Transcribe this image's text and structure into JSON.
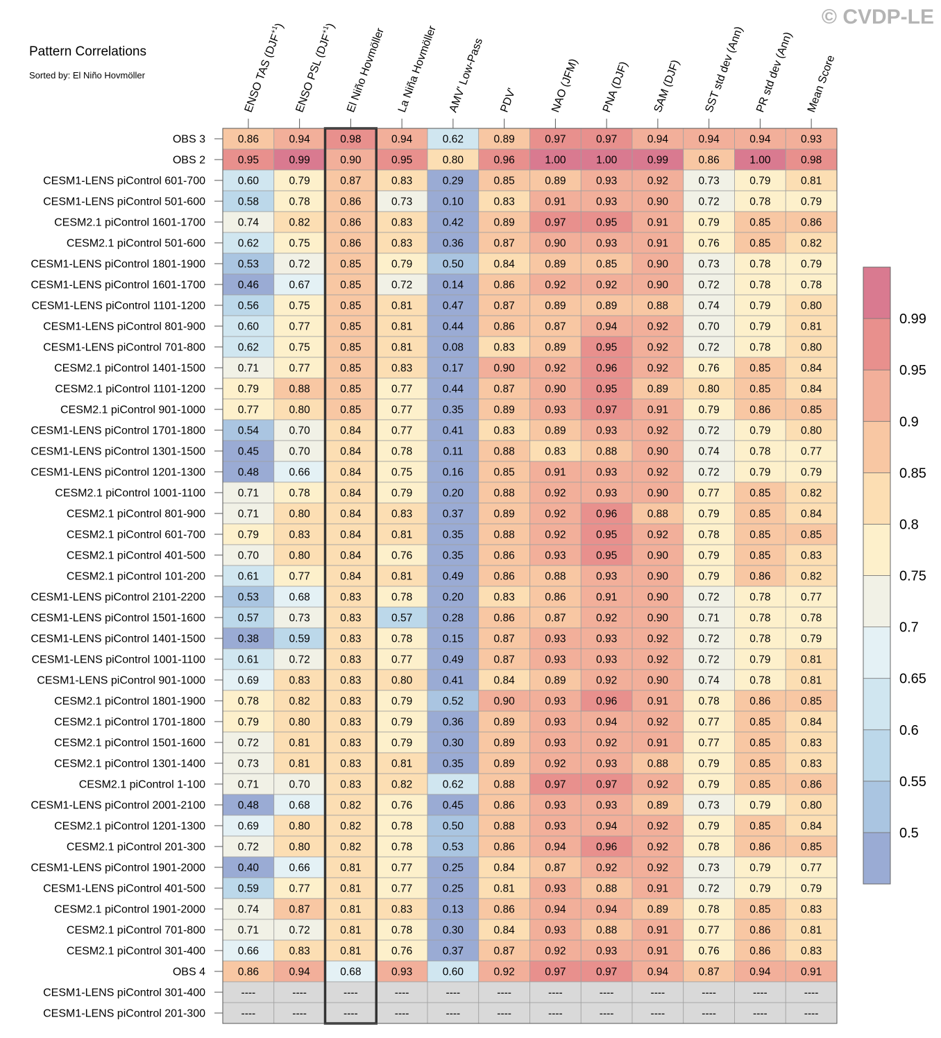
{
  "watermark": "© CVDP-LE",
  "chart_data": {
    "type": "heatmap",
    "title": "Pattern Correlations",
    "subtitle": "Sorted by: El Niño Hovmöller",
    "highlighted_column": "El Niño Hovmöller",
    "missing_label": "----",
    "columns": [
      {
        "name": "ENSO TAS (DJF",
        "sup": "+1",
        "close": ")"
      },
      {
        "name": "ENSO PSL (DJF",
        "sup": "+1",
        "close": ")"
      },
      {
        "name": "El Niño Hovmöller",
        "sup": "",
        "close": ""
      },
      {
        "name": "La Niña Hovmöller",
        "sup": "",
        "close": ""
      },
      {
        "name": "AMV' Low-Pass",
        "sup": "",
        "close": ""
      },
      {
        "name": "PDV'",
        "sup": "",
        "close": ""
      },
      {
        "name": "NAO (JFM)",
        "sup": "",
        "close": ""
      },
      {
        "name": "PNA (DJF)",
        "sup": "",
        "close": ""
      },
      {
        "name": "SAM (DJF)",
        "sup": "",
        "close": ""
      },
      {
        "name": "SST std dev (Ann)",
        "sup": "",
        "close": ""
      },
      {
        "name": "PR std dev (Ann)",
        "sup": "",
        "close": ""
      },
      {
        "name": "Mean Score",
        "sup": "",
        "close": ""
      }
    ],
    "rows": [
      {
        "label": "OBS 3",
        "values": [
          0.86,
          0.94,
          0.98,
          0.94,
          0.62,
          0.89,
          0.97,
          0.97,
          0.94,
          0.94,
          0.94,
          0.93
        ]
      },
      {
        "label": "OBS 2",
        "values": [
          0.95,
          0.99,
          0.9,
          0.95,
          0.8,
          0.96,
          1.0,
          1.0,
          0.99,
          0.86,
          1.0,
          0.98
        ]
      },
      {
        "label": "CESM1-LENS piControl 601-700",
        "values": [
          0.6,
          0.79,
          0.87,
          0.83,
          0.29,
          0.85,
          0.89,
          0.93,
          0.92,
          0.73,
          0.79,
          0.81
        ]
      },
      {
        "label": "CESM1-LENS piControl 501-600",
        "values": [
          0.58,
          0.78,
          0.86,
          0.73,
          0.1,
          0.83,
          0.91,
          0.93,
          0.9,
          0.72,
          0.78,
          0.79
        ]
      },
      {
        "label": "CESM2.1 piControl 1601-1700",
        "values": [
          0.74,
          0.82,
          0.86,
          0.83,
          0.42,
          0.89,
          0.97,
          0.95,
          0.91,
          0.79,
          0.85,
          0.86
        ]
      },
      {
        "label": "CESM2.1 piControl 501-600",
        "values": [
          0.62,
          0.75,
          0.86,
          0.83,
          0.36,
          0.87,
          0.9,
          0.93,
          0.91,
          0.76,
          0.85,
          0.82
        ]
      },
      {
        "label": "CESM1-LENS piControl 1801-1900",
        "values": [
          0.53,
          0.72,
          0.85,
          0.79,
          0.5,
          0.84,
          0.89,
          0.85,
          0.9,
          0.73,
          0.78,
          0.79
        ]
      },
      {
        "label": "CESM1-LENS piControl 1601-1700",
        "values": [
          0.46,
          0.67,
          0.85,
          0.72,
          0.14,
          0.86,
          0.92,
          0.92,
          0.9,
          0.72,
          0.78,
          0.78
        ]
      },
      {
        "label": "CESM1-LENS piControl 1101-1200",
        "values": [
          0.56,
          0.75,
          0.85,
          0.81,
          0.47,
          0.87,
          0.89,
          0.89,
          0.88,
          0.74,
          0.79,
          0.8
        ]
      },
      {
        "label": "CESM1-LENS piControl 801-900",
        "values": [
          0.6,
          0.77,
          0.85,
          0.81,
          0.44,
          0.86,
          0.87,
          0.94,
          0.92,
          0.7,
          0.79,
          0.81
        ]
      },
      {
        "label": "CESM1-LENS piControl 701-800",
        "values": [
          0.62,
          0.75,
          0.85,
          0.81,
          0.08,
          0.83,
          0.89,
          0.95,
          0.92,
          0.72,
          0.78,
          0.8
        ]
      },
      {
        "label": "CESM2.1 piControl 1401-1500",
        "values": [
          0.71,
          0.77,
          0.85,
          0.83,
          0.17,
          0.9,
          0.92,
          0.96,
          0.92,
          0.76,
          0.85,
          0.84
        ]
      },
      {
        "label": "CESM2.1 piControl 1101-1200",
        "values": [
          0.79,
          0.88,
          0.85,
          0.77,
          0.44,
          0.87,
          0.9,
          0.95,
          0.89,
          0.8,
          0.85,
          0.84
        ]
      },
      {
        "label": "CESM2.1 piControl 901-1000",
        "values": [
          0.77,
          0.8,
          0.85,
          0.77,
          0.35,
          0.89,
          0.93,
          0.97,
          0.91,
          0.79,
          0.86,
          0.85
        ]
      },
      {
        "label": "CESM1-LENS piControl 1701-1800",
        "values": [
          0.54,
          0.7,
          0.84,
          0.77,
          0.41,
          0.83,
          0.89,
          0.93,
          0.92,
          0.72,
          0.79,
          0.8
        ]
      },
      {
        "label": "CESM1-LENS piControl 1301-1500",
        "values": [
          0.45,
          0.7,
          0.84,
          0.78,
          0.11,
          0.88,
          0.83,
          0.88,
          0.9,
          0.74,
          0.78,
          0.77
        ]
      },
      {
        "label": "CESM1-LENS piControl 1201-1300",
        "values": [
          0.48,
          0.66,
          0.84,
          0.75,
          0.16,
          0.85,
          0.91,
          0.93,
          0.92,
          0.72,
          0.79,
          0.79
        ]
      },
      {
        "label": "CESM2.1 piControl 1001-1100",
        "values": [
          0.71,
          0.78,
          0.84,
          0.79,
          0.2,
          0.88,
          0.92,
          0.93,
          0.9,
          0.77,
          0.85,
          0.82
        ]
      },
      {
        "label": "CESM2.1 piControl 801-900",
        "values": [
          0.71,
          0.8,
          0.84,
          0.83,
          0.37,
          0.89,
          0.92,
          0.96,
          0.88,
          0.79,
          0.85,
          0.84
        ]
      },
      {
        "label": "CESM2.1 piControl 601-700",
        "values": [
          0.79,
          0.83,
          0.84,
          0.81,
          0.35,
          0.88,
          0.92,
          0.95,
          0.92,
          0.78,
          0.85,
          0.85
        ]
      },
      {
        "label": "CESM2.1 piControl 401-500",
        "values": [
          0.7,
          0.8,
          0.84,
          0.76,
          0.35,
          0.86,
          0.93,
          0.95,
          0.9,
          0.79,
          0.85,
          0.83
        ]
      },
      {
        "label": "CESM2.1 piControl 101-200",
        "values": [
          0.61,
          0.77,
          0.84,
          0.81,
          0.49,
          0.86,
          0.88,
          0.93,
          0.9,
          0.79,
          0.86,
          0.82
        ]
      },
      {
        "label": "CESM1-LENS piControl 2101-2200",
        "values": [
          0.53,
          0.68,
          0.83,
          0.78,
          0.2,
          0.83,
          0.86,
          0.91,
          0.9,
          0.72,
          0.78,
          0.77
        ]
      },
      {
        "label": "CESM1-LENS piControl 1501-1600",
        "values": [
          0.57,
          0.73,
          0.83,
          0.57,
          0.28,
          0.86,
          0.87,
          0.92,
          0.9,
          0.71,
          0.78,
          0.78
        ]
      },
      {
        "label": "CESM1-LENS piControl 1401-1500",
        "values": [
          0.38,
          0.59,
          0.83,
          0.78,
          0.15,
          0.87,
          0.93,
          0.93,
          0.92,
          0.72,
          0.78,
          0.79
        ]
      },
      {
        "label": "CESM1-LENS piControl 1001-1100",
        "values": [
          0.61,
          0.72,
          0.83,
          0.77,
          0.49,
          0.87,
          0.93,
          0.93,
          0.92,
          0.72,
          0.79,
          0.81
        ]
      },
      {
        "label": "CESM1-LENS piControl 901-1000",
        "values": [
          0.69,
          0.83,
          0.83,
          0.8,
          0.41,
          0.84,
          0.89,
          0.92,
          0.9,
          0.74,
          0.78,
          0.81
        ]
      },
      {
        "label": "CESM2.1 piControl 1801-1900",
        "values": [
          0.78,
          0.82,
          0.83,
          0.79,
          0.52,
          0.9,
          0.93,
          0.96,
          0.91,
          0.78,
          0.86,
          0.85
        ]
      },
      {
        "label": "CESM2.1 piControl 1701-1800",
        "values": [
          0.79,
          0.8,
          0.83,
          0.79,
          0.36,
          0.89,
          0.93,
          0.94,
          0.92,
          0.77,
          0.85,
          0.84
        ]
      },
      {
        "label": "CESM2.1 piControl 1501-1600",
        "values": [
          0.72,
          0.81,
          0.83,
          0.79,
          0.3,
          0.89,
          0.93,
          0.92,
          0.91,
          0.77,
          0.85,
          0.83
        ]
      },
      {
        "label": "CESM2.1 piControl 1301-1400",
        "values": [
          0.73,
          0.81,
          0.83,
          0.81,
          0.35,
          0.89,
          0.92,
          0.93,
          0.88,
          0.79,
          0.85,
          0.83
        ]
      },
      {
        "label": "CESM2.1 piControl 1-100",
        "values": [
          0.71,
          0.7,
          0.83,
          0.82,
          0.62,
          0.88,
          0.97,
          0.97,
          0.92,
          0.79,
          0.85,
          0.86
        ]
      },
      {
        "label": "CESM1-LENS piControl 2001-2100",
        "values": [
          0.48,
          0.68,
          0.82,
          0.76,
          0.45,
          0.86,
          0.93,
          0.93,
          0.89,
          0.73,
          0.79,
          0.8
        ]
      },
      {
        "label": "CESM2.1 piControl 1201-1300",
        "values": [
          0.69,
          0.8,
          0.82,
          0.78,
          0.5,
          0.88,
          0.93,
          0.94,
          0.92,
          0.79,
          0.85,
          0.84
        ]
      },
      {
        "label": "CESM2.1 piControl 201-300",
        "values": [
          0.72,
          0.8,
          0.82,
          0.78,
          0.53,
          0.86,
          0.94,
          0.96,
          0.92,
          0.78,
          0.86,
          0.85
        ]
      },
      {
        "label": "CESM1-LENS piControl 1901-2000",
        "values": [
          0.4,
          0.66,
          0.81,
          0.77,
          0.25,
          0.84,
          0.87,
          0.92,
          0.92,
          0.73,
          0.79,
          0.77
        ]
      },
      {
        "label": "CESM1-LENS piControl 401-500",
        "values": [
          0.59,
          0.77,
          0.81,
          0.77,
          0.25,
          0.81,
          0.93,
          0.88,
          0.91,
          0.72,
          0.79,
          0.79
        ]
      },
      {
        "label": "CESM2.1 piControl 1901-2000",
        "values": [
          0.74,
          0.87,
          0.81,
          0.83,
          0.13,
          0.86,
          0.94,
          0.94,
          0.89,
          0.78,
          0.85,
          0.83
        ]
      },
      {
        "label": "CESM2.1 piControl 701-800",
        "values": [
          0.71,
          0.72,
          0.81,
          0.78,
          0.3,
          0.84,
          0.93,
          0.88,
          0.91,
          0.77,
          0.86,
          0.81
        ]
      },
      {
        "label": "CESM2.1 piControl 301-400",
        "values": [
          0.66,
          0.83,
          0.81,
          0.76,
          0.37,
          0.87,
          0.92,
          0.93,
          0.91,
          0.76,
          0.86,
          0.83
        ]
      },
      {
        "label": "OBS 4",
        "values": [
          0.86,
          0.94,
          0.68,
          0.93,
          0.6,
          0.92,
          0.97,
          0.97,
          0.94,
          0.87,
          0.94,
          0.91
        ]
      },
      {
        "label": "CESM1-LENS piControl 301-400",
        "values": [
          null,
          null,
          null,
          null,
          null,
          null,
          null,
          null,
          null,
          null,
          null,
          null
        ]
      },
      {
        "label": "CESM1-LENS piControl 201-300",
        "values": [
          null,
          null,
          null,
          null,
          null,
          null,
          null,
          null,
          null,
          null,
          null,
          null
        ]
      }
    ],
    "colorbar": {
      "levels": [
        0.5,
        0.55,
        0.6,
        0.65,
        0.7,
        0.75,
        0.8,
        0.85,
        0.9,
        0.95,
        0.99
      ],
      "tick_labels": [
        "0.5",
        "0.55",
        "0.6",
        "0.65",
        "0.7",
        "0.75",
        "0.8",
        "0.85",
        "0.9",
        "0.95",
        "0.99"
      ],
      "colors": [
        "#9aabd4",
        "#aac5e1",
        "#bcd8ea",
        "#d0e6f0",
        "#e4f1f5",
        "#f1f1e6",
        "#fdf0cb",
        "#fcdeb3",
        "#f8c7a3",
        "#f2af9a",
        "#e8908d",
        "#d97a90"
      ],
      "missing_color": "#d9d9d9"
    }
  }
}
